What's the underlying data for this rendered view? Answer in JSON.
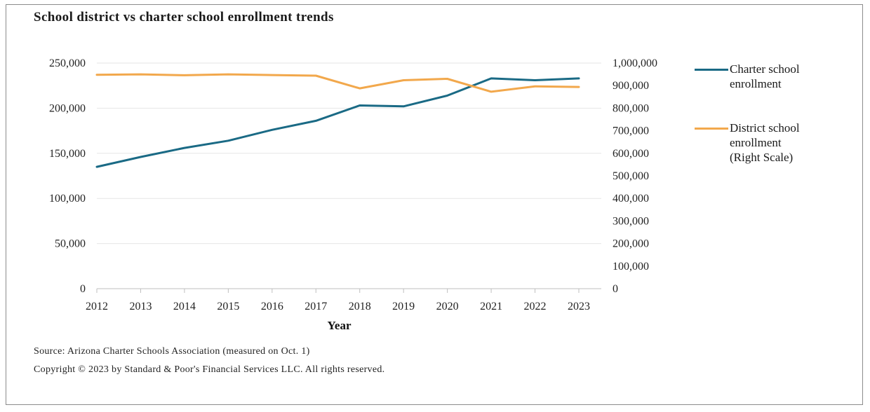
{
  "header": {
    "title": "School district vs charter school enrollment trends"
  },
  "footer": {
    "source": "Source: Arizona Charter Schools Association (measured on Oct. 1)",
    "copyright": "Copyright © 2023 by Standard & Poor's Financial Services LLC. All rights reserved."
  },
  "legend": {
    "charter_lines": [
      "Charter school",
      "enrollment"
    ],
    "district_lines": [
      "District school",
      "enrollment",
      "(Right Scale)"
    ]
  },
  "colors": {
    "charter": "#1a6a85",
    "district": "#f2a84c",
    "grid": "#e6e6e6",
    "axis": "#bfbfbf"
  },
  "chart_data": {
    "type": "line",
    "xlabel": "Year",
    "x": [
      "2012",
      "2013",
      "2014",
      "2015",
      "2016",
      "2017",
      "2018",
      "2019",
      "2020",
      "2021",
      "2022",
      "2023"
    ],
    "y_left": {
      "min": 0,
      "max": 250000,
      "ticks": [
        0,
        50000,
        100000,
        150000,
        200000,
        250000
      ],
      "tick_labels": [
        "0",
        "50,000",
        "100,000",
        "150,000",
        "200,000",
        "250,000"
      ]
    },
    "y_right": {
      "min": 0,
      "max": 1000000,
      "ticks": [
        0,
        100000,
        200000,
        300000,
        400000,
        500000,
        600000,
        700000,
        800000,
        900000,
        1000000
      ],
      "tick_labels": [
        "0",
        "100,000",
        "200,000",
        "300,000",
        "400,000",
        "500,000",
        "600,000",
        "700,000",
        "800,000",
        "900,000",
        "1,000,000"
      ]
    },
    "series": [
      {
        "name": "Charter school enrollment",
        "axis": "left",
        "values": [
          135000,
          146000,
          156000,
          164000,
          176000,
          186000,
          203000,
          202000,
          214000,
          233000,
          231000,
          233000
        ]
      },
      {
        "name": "District school enrollment (Right Scale)",
        "axis": "right",
        "values": [
          948000,
          950000,
          946000,
          950000,
          947000,
          944000,
          888000,
          924000,
          930000,
          873000,
          897000,
          894000
        ]
      }
    ],
    "grid": true,
    "legend_position": "right"
  }
}
